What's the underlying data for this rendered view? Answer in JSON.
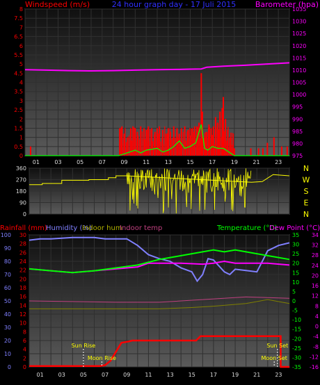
{
  "header": {
    "wind_label": "Windspeed (m/s)",
    "title": "24 hour graph day - 17 Juli 2015",
    "baro_label": "Barometer (hpa)"
  },
  "bottom_header": {
    "rain_label": "Rainfall (mm)",
    "hum_label": "Humidity (%)",
    "in_hum_label": "Indoor hum",
    "in_temp_label": "Indoor temp",
    "temp_label": "Temperature (°C)",
    "dew_label": "Dew Point (°C)"
  },
  "annotations": {
    "sun_rise": "Sun Rise",
    "moon_rise": "Moon Rise",
    "sun_set": "Sun Set",
    "moon_set": "Moon Set"
  },
  "colors": {
    "wind": "#ff0000",
    "gust": "#ff0000",
    "wind_avg": "#00ff00",
    "baro": "#ff00ff",
    "direction": "#ffff00",
    "humidity": "#8080ff",
    "temperature": "#00ff00",
    "dew": "#ff00ff",
    "rain": "#ff0000",
    "in_hum": "#808000",
    "in_temp": "#c04080",
    "grid": "#303030"
  },
  "chart_data": [
    {
      "type": "bar",
      "name": "wind",
      "x_ticks": [
        "01",
        "03",
        "05",
        "07",
        "09",
        "11",
        "13",
        "15",
        "17",
        "19",
        "21",
        "23"
      ],
      "ylim": [
        0,
        8
      ],
      "y_ticks": [
        "0",
        "0.5",
        "1",
        "1.5",
        "2",
        "2.5",
        "3",
        "3.5",
        "4",
        "4.5",
        "5",
        "5.5",
        "6",
        "6.5",
        "7",
        "7.5",
        "8"
      ],
      "y2lim": [
        975,
        1035
      ],
      "y2_ticks": [
        "975",
        "980",
        "985",
        "990",
        "995",
        "1000",
        "1005",
        "1010",
        "1015",
        "1020",
        "1025",
        "1030",
        "1035"
      ],
      "gust_hours": [
        0.5,
        8.6,
        8.8,
        9.0,
        9.3,
        9.6,
        9.8,
        10.0,
        10.2,
        10.5,
        10.8,
        11.0,
        11.2,
        11.5,
        11.8,
        12.0,
        12.2,
        12.5,
        12.8,
        13.0,
        13.2,
        13.5,
        13.8,
        14.0,
        14.2,
        14.5,
        14.8,
        15.0,
        15.2,
        15.4,
        15.6,
        15.8,
        16.0,
        16.1,
        16.3,
        16.5,
        16.7,
        16.9,
        17.1,
        17.3,
        17.5,
        17.7,
        17.9,
        18.0,
        18.2,
        18.4,
        18.6,
        18.8,
        19.0,
        20.5,
        21.2,
        21.6,
        22.0,
        22.6,
        23.3,
        23.8
      ],
      "gust_values": [
        0.5,
        1.5,
        1.6,
        1.2,
        1.0,
        1.5,
        1.6,
        1.5,
        1.3,
        1.6,
        1.5,
        1.4,
        1.6,
        1.5,
        1.3,
        1.5,
        1.6,
        1.4,
        1.2,
        1.5,
        1.3,
        1.6,
        1.5,
        1.2,
        1.5,
        1.6,
        1.4,
        1.1,
        1.5,
        1.6,
        1.6,
        1.8,
        4.5,
        2.4,
        1.0,
        1.3,
        1.7,
        1.5,
        1.6,
        2.1,
        1.8,
        2.4,
        2.6,
        3.2,
        2.0,
        1.4,
        1.0,
        0.6,
        0.4,
        0.4,
        0.4,
        0.4,
        0.7,
        1.0,
        0.5,
        0.5
      ],
      "avg_hours": [
        0,
        8.5,
        9.0,
        9.5,
        10.0,
        10.5,
        11.0,
        11.5,
        12.0,
        12.5,
        13.0,
        13.5,
        14.0,
        14.5,
        15.0,
        15.5,
        16.0,
        16.3,
        16.6,
        17.0,
        17.5,
        18.0,
        18.5,
        19.0,
        24
      ],
      "avg_values": [
        0,
        0,
        0.1,
        0.2,
        0.3,
        0.15,
        0.3,
        0.35,
        0.4,
        0.2,
        0.3,
        0.5,
        0.8,
        0.4,
        0.5,
        0.7,
        1.7,
        0.4,
        0.3,
        0.5,
        0.4,
        0.4,
        0.2,
        0,
        0
      ],
      "baro_hours": [
        0,
        2,
        4,
        6,
        8,
        10,
        12,
        14,
        15,
        16,
        16.5,
        17,
        18,
        20,
        22,
        24
      ],
      "baro_values": [
        1010.2,
        1010.0,
        1009.8,
        1009.7,
        1009.8,
        1010.0,
        1010.2,
        1010.3,
        1010.4,
        1010.5,
        1011.2,
        1011.3,
        1011.6,
        1012.0,
        1012.5,
        1013.0
      ]
    },
    {
      "type": "line",
      "name": "wind_direction",
      "ylim": [
        0,
        360
      ],
      "y_ticks": [
        "0",
        "90",
        "180",
        "270",
        "360"
      ],
      "compass": [
        "N",
        "W",
        "S",
        "E",
        "N"
      ],
      "dir_hours": [
        0,
        1.2,
        1.2,
        3.0,
        3.0,
        5.5,
        5.5,
        7.3,
        7.3,
        8.0,
        8.0,
        9.0,
        20.5,
        20.5,
        21.5,
        21.5,
        22.5,
        22.5,
        24
      ],
      "dir_values": [
        230,
        230,
        240,
        240,
        265,
        265,
        270,
        270,
        285,
        285,
        300,
        300,
        250,
        250,
        255,
        255,
        310,
        310,
        300
      ],
      "noise_start": 9.0,
      "noise_end": 20.5
    },
    {
      "type": "line",
      "name": "temperature_humidity_rain",
      "hum_lim": [
        0,
        100
      ],
      "hum_ticks": [
        "0",
        "10",
        "20",
        "30",
        "40",
        "50",
        "60",
        "70",
        "80",
        "90",
        "100"
      ],
      "rain_ticks": [
        "0",
        "2",
        "4",
        "6",
        "8",
        "10",
        "12",
        "14",
        "16",
        "18",
        "20",
        "22",
        "24",
        "26",
        "28",
        "30"
      ],
      "temp_ticks": [
        "-35",
        "-30",
        "-25",
        "-20",
        "-15",
        "-10",
        "-5",
        "0",
        "5",
        "10",
        "15",
        "20",
        "25",
        "30",
        "35"
      ],
      "dew_ticks": [
        "-16",
        "-12",
        "-8",
        "-4",
        "0",
        "4",
        "8",
        "12",
        "16",
        "20",
        "24",
        "28",
        "32",
        "34"
      ],
      "hum_hours": [
        0,
        1,
        2,
        4,
        6,
        7,
        9,
        10,
        11,
        12,
        13,
        14,
        15,
        15.5,
        16,
        16.5,
        17,
        18,
        18.5,
        19,
        20,
        21,
        22,
        23,
        24
      ],
      "hum_values": [
        96,
        97,
        97,
        98,
        98,
        97,
        97,
        92,
        85,
        82,
        80,
        75,
        72,
        65,
        70,
        82,
        81,
        72,
        70,
        74,
        73,
        72,
        88,
        92,
        94
      ],
      "temp_hours": [
        0,
        2,
        4,
        6,
        8,
        10,
        12,
        14,
        15,
        16,
        17,
        18,
        19,
        20,
        22,
        24
      ],
      "temp_values": [
        17,
        16,
        15,
        16,
        17.5,
        19,
        22,
        24,
        25,
        26,
        27,
        26,
        27,
        26,
        24,
        22
      ],
      "dew_hours": [
        0,
        2,
        4,
        6,
        8,
        10,
        11,
        12,
        14,
        16,
        17,
        18,
        19,
        20,
        22,
        24
      ],
      "dew_values": [
        17,
        16,
        15,
        16,
        17,
        18,
        20,
        20,
        20,
        19.5,
        20,
        21,
        20,
        20,
        20,
        19
      ],
      "rain_hours": [
        0,
        6.5,
        7,
        7.5,
        8.5,
        9.2,
        9.5,
        10.0,
        15.0,
        15.4,
        15.8,
        16.2,
        23.2,
        23.2,
        24
      ],
      "rain_values": [
        0.2,
        0.2,
        0.4,
        1.4,
        5.5,
        5.8,
        6.0,
        6.0,
        6.0,
        6.0,
        7.0,
        7.0,
        7.0,
        0,
        0
      ],
      "inhum_hours": [
        0,
        9,
        12,
        15,
        17,
        20,
        22,
        24
      ],
      "inhum_values": [
        44,
        44,
        44,
        45,
        46,
        48,
        51,
        48
      ],
      "intemp_hours": [
        0,
        8,
        12,
        16,
        20,
        24
      ],
      "intemp_values": [
        50,
        49,
        49,
        51,
        53,
        52
      ]
    }
  ]
}
